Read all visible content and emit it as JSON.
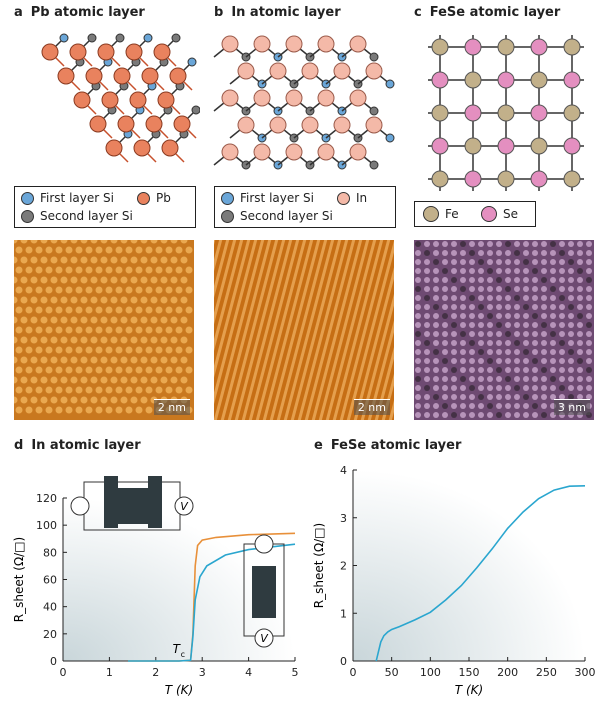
{
  "panels": {
    "a": {
      "letter": "a",
      "title": "Pb atomic layer",
      "legend": [
        "First layer Si",
        "Pb",
        "Second layer Si"
      ],
      "scalebar": "2 nm"
    },
    "b": {
      "letter": "b",
      "title": "In atomic layer",
      "legend": [
        "First layer Si",
        "In",
        "Second layer Si"
      ],
      "scalebar": "2 nm"
    },
    "c": {
      "letter": "c",
      "title": "FeSe atomic layer",
      "legend": [
        "Fe",
        "Se"
      ],
      "scalebar": "3 nm"
    },
    "d": {
      "letter": "d",
      "title": "In atomic layer",
      "tc_label": "T",
      "tc_sub": "c"
    },
    "e": {
      "letter": "e",
      "title": "FeSe atomic layer"
    }
  },
  "colors": {
    "si_first": "#6aa6d8",
    "si_second": "#7a7a7a",
    "pb": "#e9825e",
    "in": "#f4b9a8",
    "fe": "#c2b08a",
    "se": "#e48fc0",
    "curve_orange": "#e8903a",
    "curve_blue": "#2aa6cf"
  },
  "chart_data": [
    {
      "type": "line",
      "xlabel": "T (K)",
      "ylabel": "R_sheet (Ω/□)",
      "xlim": [
        0,
        5
      ],
      "ylim": [
        0,
        120
      ],
      "xticks": [
        0,
        1,
        2,
        3,
        4,
        5
      ],
      "yticks": [
        0,
        20,
        40,
        60,
        80,
        100,
        120
      ],
      "series": [
        {
          "color": "orange",
          "x": [
            1.4,
            2.5,
            2.75,
            2.8,
            2.85,
            2.9,
            3.0,
            3.3,
            4.0,
            5.0
          ],
          "y": [
            0,
            0,
            0.5,
            20,
            70,
            85,
            89,
            91,
            93,
            94
          ]
        },
        {
          "color": "blue",
          "x": [
            1.4,
            2.5,
            2.75,
            2.8,
            2.85,
            2.95,
            3.1,
            3.5,
            4.0,
            5.0
          ],
          "y": [
            0,
            0,
            0.5,
            18,
            45,
            62,
            70,
            78,
            82,
            86
          ]
        }
      ]
    },
    {
      "type": "line",
      "xlabel": "T (K)",
      "ylabel": "R_sheet (Ω/□)",
      "xlim": [
        0,
        300
      ],
      "ylim": [
        0,
        4
      ],
      "xticks": [
        0,
        50,
        100,
        150,
        200,
        250,
        300
      ],
      "yticks": [
        0,
        1,
        2,
        3,
        4
      ],
      "series": [
        {
          "color": "blue",
          "x": [
            30,
            33,
            36,
            40,
            45,
            50,
            60,
            80,
            100,
            120,
            140,
            160,
            180,
            200,
            220,
            240,
            260,
            280,
            300
          ],
          "y": [
            0,
            0.2,
            0.4,
            0.53,
            0.61,
            0.66,
            0.72,
            0.86,
            1.02,
            1.28,
            1.58,
            1.95,
            2.35,
            2.78,
            3.12,
            3.4,
            3.58,
            3.66,
            3.67
          ]
        }
      ]
    }
  ]
}
